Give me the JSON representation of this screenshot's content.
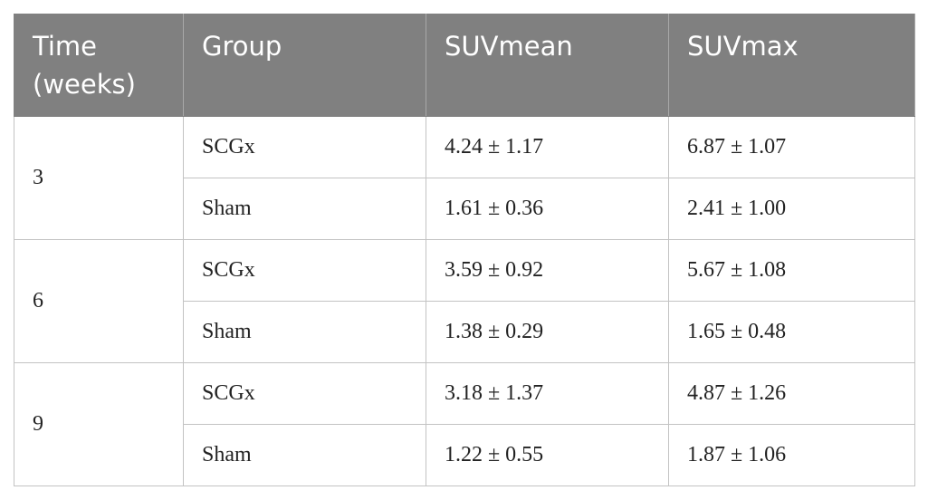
{
  "table": {
    "header": [
      "Time (weeks)",
      "Group",
      "SUVmean",
      "SUVmax"
    ],
    "groups": [
      {
        "time": "3",
        "rows": [
          [
            "SCGx",
            "4.24 ± 1.17",
            "6.87 ± 1.07"
          ],
          [
            "Sham",
            "1.61 ± 0.36",
            "2.41 ± 1.00"
          ]
        ]
      },
      {
        "time": "6",
        "rows": [
          [
            "SCGx",
            "3.59 ± 0.92",
            "5.67 ± 1.08"
          ],
          [
            "Sham",
            "1.38 ± 0.29",
            "1.65 ± 0.48"
          ]
        ]
      },
      {
        "time": "9",
        "rows": [
          [
            "SCGx",
            "3.18 ± 1.37",
            "4.87 ± 1.26"
          ],
          [
            "Sham",
            "1.22 ± 0.55",
            "1.87 ± 1.06"
          ]
        ]
      }
    ]
  }
}
